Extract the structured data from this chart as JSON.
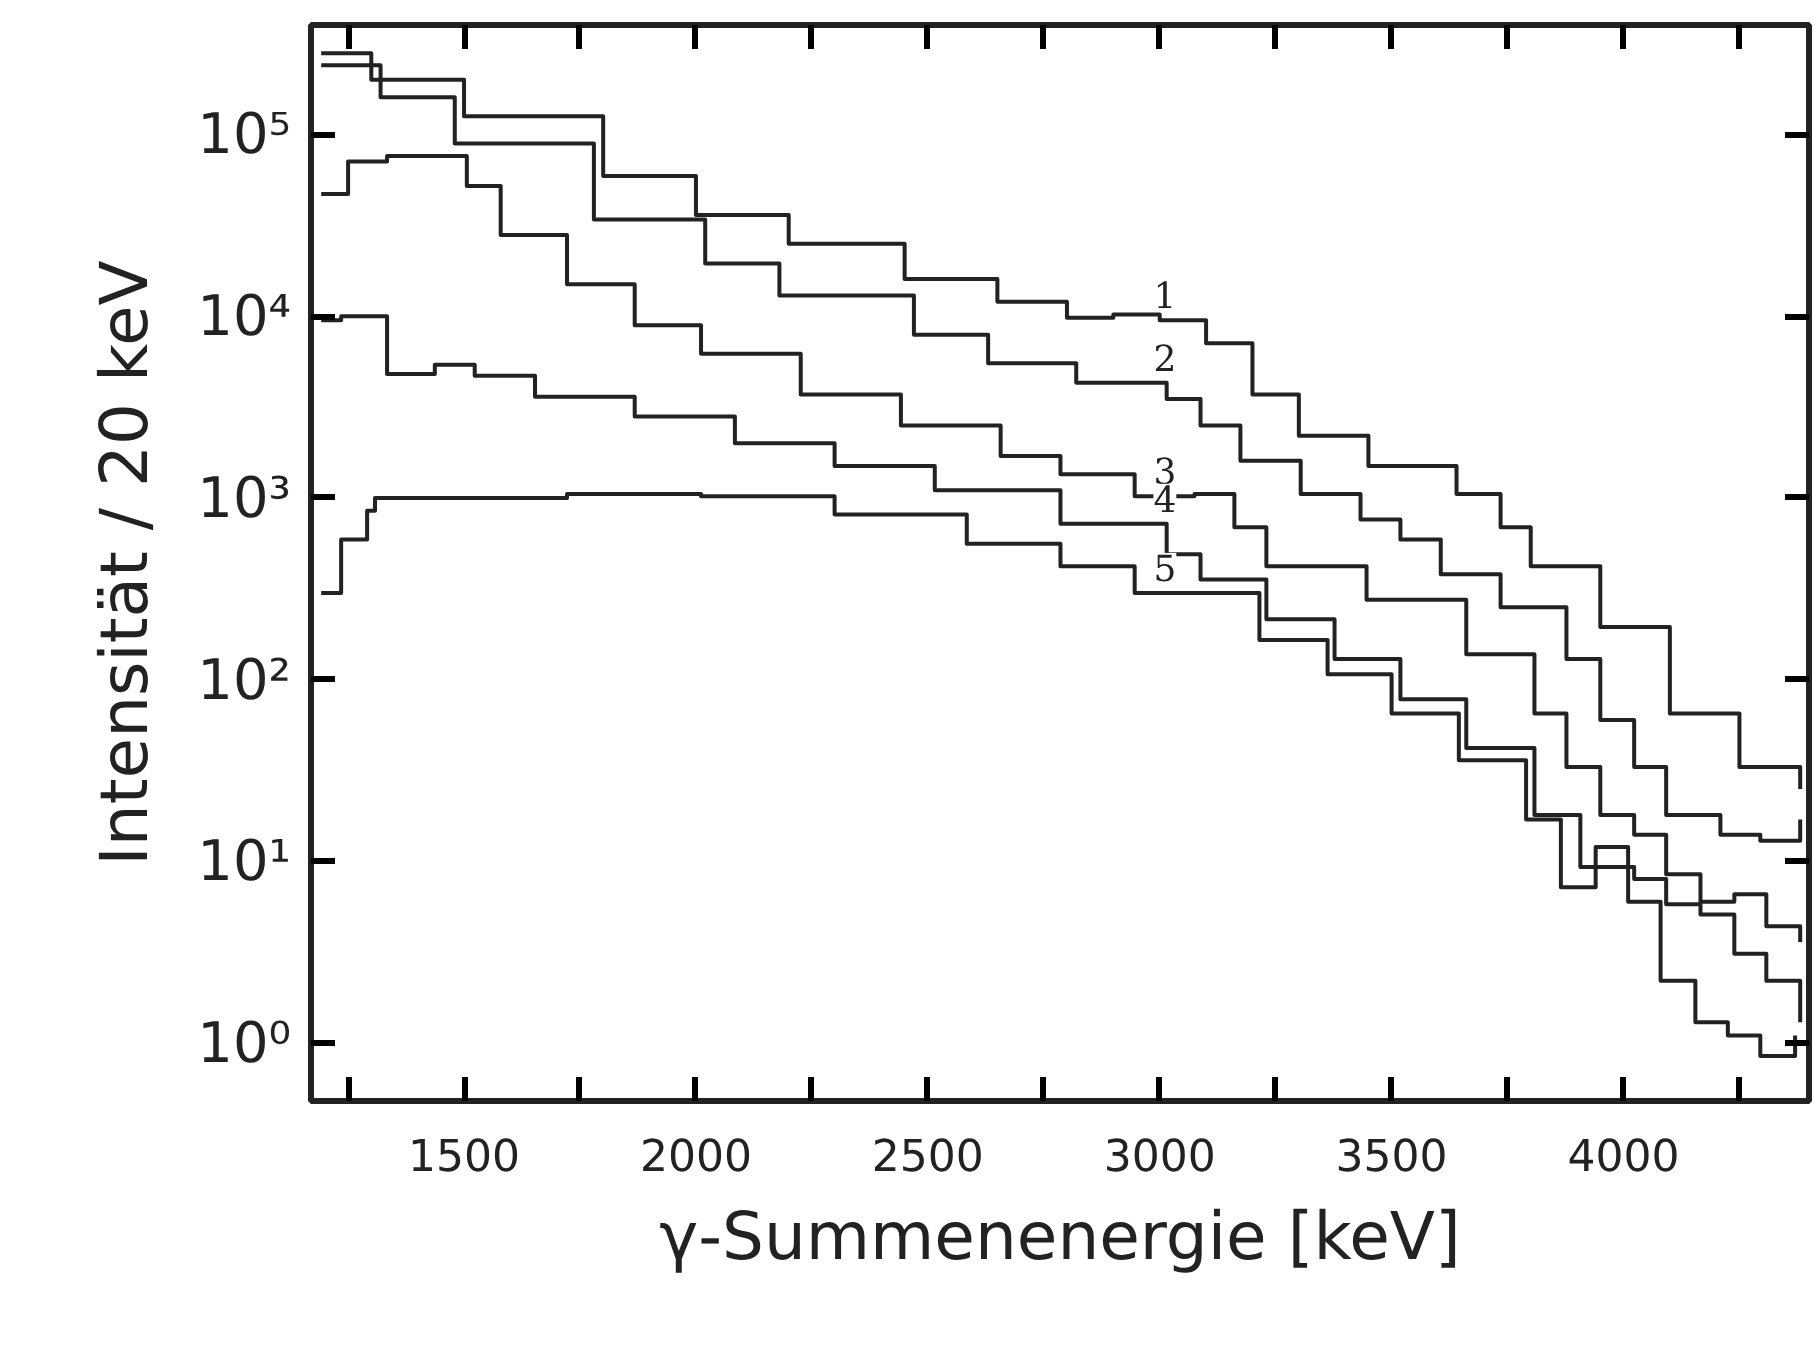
{
  "chart_data": {
    "type": "step",
    "xlabel": "γ-Summenenergie [keV]",
    "ylabel": "Intensität / 20 keV",
    "log": "y",
    "xlim": [
      1170,
      4400
    ],
    "ylim": [
      0.48,
      400000
    ],
    "xticks": [
      {
        "value": 1250,
        "label": null
      },
      1500,
      {
        "value": 1750,
        "label": null
      },
      2000,
      {
        "value": 2250,
        "label": null
      },
      2500,
      {
        "value": 2750,
        "label": null
      },
      3000,
      {
        "value": 3250,
        "label": null
      },
      3500,
      {
        "value": 3750,
        "label": null
      },
      4000,
      {
        "value": 4250,
        "label": null
      }
    ],
    "yticks": [
      {
        "value": 1,
        "label": "10⁰"
      },
      {
        "value": 10,
        "label": "10¹"
      },
      {
        "value": 100,
        "label": "10²"
      },
      {
        "value": 1000,
        "label": "10³"
      },
      {
        "value": 10000,
        "label": "10⁴"
      },
      {
        "value": 100000,
        "label": "10⁵"
      }
    ],
    "series": [
      {
        "name": "1",
        "color": "#222222",
        "x": [
          1192,
          1300,
          1500,
          1800,
          2000,
          2200,
          2450,
          2650,
          2800,
          2900,
          3000,
          3100,
          3200,
          3300,
          3450,
          3640,
          3735,
          3800,
          3950,
          4100,
          4250,
          4381
        ],
        "values": [
          280000,
          200000,
          126000,
          59000,
          36000,
          25000,
          16000,
          12000,
          9800,
          10200,
          9500,
          7100,
          3700,
          2200,
          1500,
          1050,
          690,
          420,
          195,
          65,
          33,
          25
        ]
      },
      {
        "name": "2",
        "color": "#222222",
        "x": [
          1192,
          1320,
          1480,
          1780,
          2020,
          2180,
          2470,
          2630,
          2820,
          2946,
          3015,
          3088,
          3174,
          3304,
          3433,
          3519,
          3606,
          3735,
          3877,
          3950,
          4023,
          4092,
          4209,
          4295,
          4381
        ],
        "values": [
          240000,
          160000,
          89000,
          34000,
          19500,
          13000,
          7900,
          5500,
          4300,
          4300,
          3500,
          2500,
          1600,
          1050,
          760,
          590,
          380,
          250,
          130,
          60,
          33,
          18,
          14,
          13,
          17
        ]
      },
      {
        "name": "3",
        "color": "#222222",
        "x": [
          1192,
          1250,
          1334,
          1506,
          1579,
          1722,
          1868,
          2011,
          2226,
          2442,
          2657,
          2786,
          2946,
          3075,
          3161,
          3230,
          3446,
          3661,
          3808,
          3877,
          3950,
          4023,
          4092,
          4166,
          4239,
          4308,
          4381
        ],
        "values": [
          47000,
          71000,
          76000,
          52000,
          28000,
          15000,
          8900,
          6200,
          3700,
          2500,
          1700,
          1350,
          1020,
          1050,
          690,
          420,
          275,
          138,
          65,
          33,
          18,
          14,
          8.5,
          6,
          6.6,
          4.4,
          3.6
        ]
      },
      {
        "name": "4",
        "color": "#222222",
        "x": [
          1192,
          1235,
          1334,
          1437,
          1523,
          1653,
          1868,
          2084,
          2299,
          2515,
          2786,
          3015,
          3088,
          3230,
          3377,
          3519,
          3661,
          3808,
          3907,
          4023,
          4092,
          4166,
          4239,
          4308,
          4381
        ],
        "values": [
          9500,
          10000,
          4800,
          5400,
          4700,
          3600,
          2800,
          2000,
          1500,
          1100,
          720,
          490,
          355,
          215,
          130,
          78,
          42,
          18,
          9.3,
          8,
          5.8,
          5.1,
          3.1,
          2.2,
          1.3
        ]
      },
      {
        "name": "5",
        "color": "#222222",
        "x": [
          1192,
          1235,
          1291,
          1308,
          1722,
          2011,
          2299,
          2584,
          2786,
          2946,
          3215,
          3362,
          3500,
          3645,
          3790,
          3865,
          3940,
          4010,
          4080,
          4155,
          4225,
          4295,
          4370
        ],
        "values": [
          300,
          590,
          850,
          1000,
          1050,
          1020,
          810,
          560,
          420,
          300,
          165,
          107,
          65,
          36,
          17,
          7.2,
          12,
          6,
          2.2,
          1.3,
          1.1,
          0.85,
          1.1
        ]
      }
    ]
  }
}
